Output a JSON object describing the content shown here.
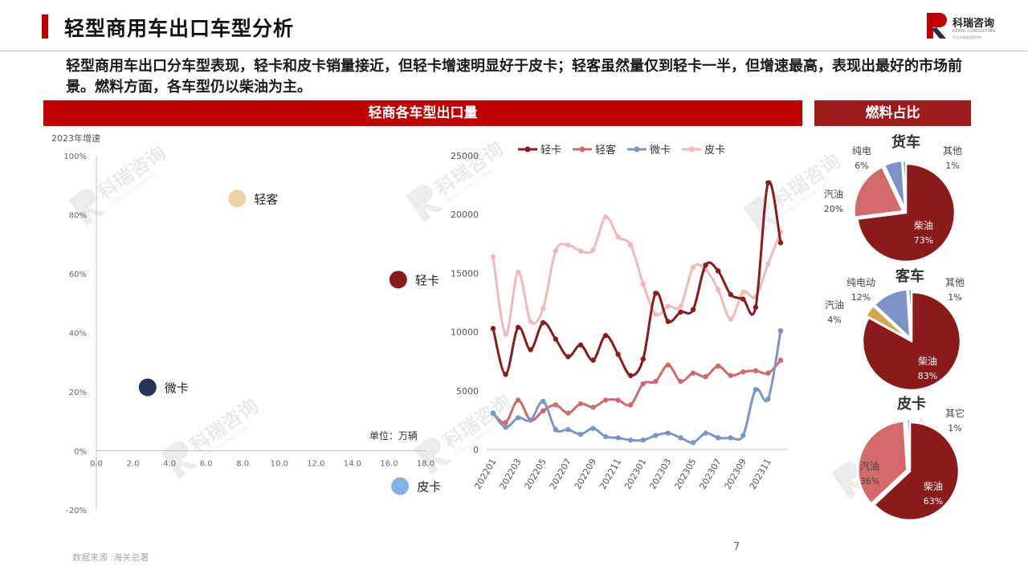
{
  "header": {
    "title": "轻型商用车出口车型分析",
    "logo_text": "科瑞咨询",
    "logo_sub": "KERUI CONSULTING",
    "logo_sub2": "专业咨询服务提供商",
    "summary": "轻型商用车出口分车型表现，轻卡和皮卡销量接近，但轻卡增速明显好于皮卡；轻客虽然量仅到轻卡一半，但增速最高，表现出最好的市场前景。燃料方面，各车型仍以柴油为主。"
  },
  "bands": {
    "main": "轻商各车型出口量",
    "fuel": "燃料占比"
  },
  "watermark": {
    "brand": "科瑞咨询",
    "sub": "KERUI CONSULTING"
  },
  "footer": {
    "source": "数据来源 :海关总署",
    "page": "7"
  },
  "colors": {
    "accent": "#c00000",
    "light_truck": "#8b1a1a",
    "light_bus": "#d06a6a",
    "micro_truck": "#7a96c6",
    "pickup": "#f0b9ba",
    "diesel": "#8b1a1a",
    "gasoline": "#d26a6a",
    "electric": "#7b93c9",
    "other": "#d9a44f"
  },
  "chart_data": [
    {
      "type": "scatter",
      "ylabel": "2023年增速",
      "unit_note": "单位：万辆",
      "xlim": [
        0,
        18
      ],
      "ylim": [
        -0.2,
        1.0
      ],
      "xticks": [
        "0.0",
        "2.0",
        "4.0",
        "6.0",
        "8.0",
        "10.0",
        "12.0",
        "14.0",
        "16.0",
        "18.0"
      ],
      "yticks": [
        "-20%",
        "0%",
        "20%",
        "40%",
        "60%",
        "80%",
        "100%"
      ],
      "points": [
        {
          "label": "轻客",
          "x": 7.7,
          "y": 0.855,
          "color": "#efd3a6"
        },
        {
          "label": "轻卡",
          "x": 16.5,
          "y": 0.58,
          "color": "#8b1a1a"
        },
        {
          "label": "微卡",
          "x": 2.8,
          "y": 0.215,
          "color": "#263352"
        },
        {
          "label": "皮卡",
          "x": 16.6,
          "y": -0.12,
          "color": "#86b0e6"
        }
      ]
    },
    {
      "type": "line",
      "ylim": [
        0,
        25000
      ],
      "yticks": [
        "0",
        "5000",
        "10000",
        "15000",
        "20000",
        "25000"
      ],
      "x": [
        "202201",
        "202202",
        "202203",
        "202204",
        "202205",
        "202206",
        "202207",
        "202208",
        "202209",
        "202210",
        "202211",
        "202212",
        "202301",
        "202302",
        "202303",
        "202304",
        "202305",
        "202306",
        "202307",
        "202308",
        "202309",
        "202310",
        "202311",
        "202312"
      ],
      "xtick_labels": [
        "202201",
        "202203",
        "202205",
        "202207",
        "202209",
        "202211",
        "202301",
        "202303",
        "202305",
        "202307",
        "202309",
        "202311"
      ],
      "series": [
        {
          "name": "轻卡",
          "color": "#8b1a1a",
          "values": [
            10300,
            6400,
            10400,
            8500,
            10800,
            9400,
            7900,
            8900,
            7600,
            9700,
            8100,
            6300,
            7700,
            13300,
            10900,
            11700,
            11900,
            15700,
            15200,
            13200,
            12800,
            12100,
            22700,
            17600
          ]
        },
        {
          "name": "轻客",
          "color": "#d06a6a",
          "values": [
            3100,
            2300,
            4200,
            2500,
            3300,
            3800,
            3100,
            3900,
            3600,
            4200,
            4200,
            3800,
            5600,
            5800,
            7200,
            5800,
            6500,
            6200,
            7100,
            6300,
            6600,
            6700,
            6500,
            7600
          ]
        },
        {
          "name": "微卡",
          "color": "#7a96c6",
          "values": [
            3100,
            1900,
            2700,
            2500,
            4100,
            1700,
            1700,
            1300,
            1800,
            1100,
            1000,
            800,
            800,
            1200,
            1400,
            1000,
            600,
            1400,
            1000,
            1000,
            1200,
            5100,
            4300,
            10100
          ]
        },
        {
          "name": "皮卡",
          "color": "#f0b9ba",
          "values": [
            16400,
            9800,
            15100,
            10900,
            12000,
            16900,
            17400,
            16900,
            17000,
            19800,
            18100,
            17400,
            14100,
            11500,
            12200,
            12200,
            15500,
            15300,
            13600,
            11100,
            13400,
            13000,
            15800,
            18500
          ]
        }
      ]
    },
    {
      "type": "pie",
      "title": "货车",
      "slices": [
        {
          "label": "柴油",
          "value": 73,
          "label_text": "73%",
          "color": "#8b1a1a"
        },
        {
          "label": "汽油",
          "value": 20,
          "label_text": "20%",
          "color": "#d26a6a"
        },
        {
          "label": "纯电",
          "value": 6,
          "label_text": "6%",
          "color": "#7b93c9"
        },
        {
          "label": "其他",
          "value": 1,
          "label_text": "1%",
          "color": "#5b6f9c"
        }
      ]
    },
    {
      "type": "pie",
      "title": "客车",
      "slices": [
        {
          "label": "柴油",
          "value": 83,
          "label_text": "83%",
          "color": "#8b1a1a"
        },
        {
          "label": "汽油",
          "value": 4,
          "label_text": "4%",
          "color": "#d9a44f"
        },
        {
          "label": "纯电动",
          "value": 12,
          "label_text": "12%",
          "color": "#7b93c9"
        },
        {
          "label": "其他",
          "value": 1,
          "label_text": "1%",
          "color": "#5b6f9c"
        }
      ]
    },
    {
      "type": "pie",
      "title": "皮卡",
      "slices": [
        {
          "label": "柴油",
          "value": 63,
          "label_text": "63%",
          "color": "#8b1a1a"
        },
        {
          "label": "汽油",
          "value": 36,
          "label_text": "36%",
          "color": "#d26a6a"
        },
        {
          "label": "其它",
          "value": 1,
          "label_text": "1%",
          "color": "#7b93c9"
        }
      ]
    }
  ]
}
